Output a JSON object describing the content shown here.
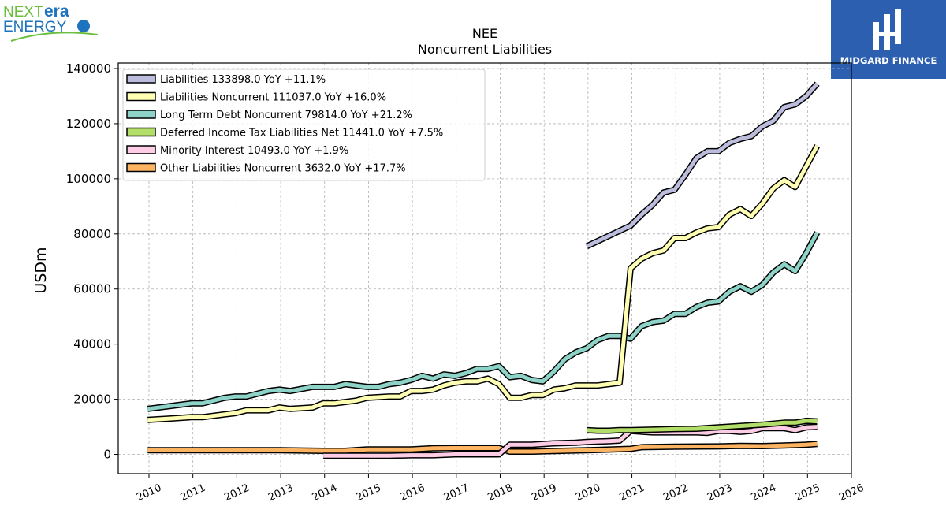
{
  "brand_left": {
    "line1_a": "NEXT",
    "line1_b": "era",
    "line2": "ENERGY"
  },
  "brand_right": {
    "name": "MIDGARD FINANCE"
  },
  "chart_data": {
    "type": "line",
    "title": "NEE",
    "subtitle": "Noncurrent  Liabilities",
    "ylabel": "USDm",
    "xlabel": "",
    "xlim": [
      2009.3,
      2026.0
    ],
    "ylim": [
      -7000,
      142000
    ],
    "x_ticks": [
      "2010",
      "2011",
      "2012",
      "2013",
      "2014",
      "2015",
      "2016",
      "2017",
      "2018",
      "2019",
      "2020",
      "2021",
      "2022",
      "2023",
      "2024",
      "2025",
      "2026"
    ],
    "y_ticks": [
      "0",
      "20000",
      "40000",
      "60000",
      "80000",
      "100000",
      "120000",
      "140000"
    ],
    "grid": true,
    "legend_position": "top-left",
    "series": [
      {
        "name": "Liabilities",
        "legend": "Liabilities  133898.0 YoY +11.1%",
        "color": "#bcbddc",
        "points": [
          [
            2019.97,
            75500
          ],
          [
            2020.97,
            83000
          ],
          [
            2021.22,
            87000
          ],
          [
            2021.47,
            90500
          ],
          [
            2021.72,
            95000
          ],
          [
            2021.97,
            96000
          ],
          [
            2022.22,
            101500
          ],
          [
            2022.47,
            107500
          ],
          [
            2022.72,
            110000
          ],
          [
            2022.97,
            110000
          ],
          [
            2023.22,
            113000
          ],
          [
            2023.47,
            114500
          ],
          [
            2023.72,
            115500
          ],
          [
            2023.97,
            119000
          ],
          [
            2024.22,
            121000
          ],
          [
            2024.47,
            126000
          ],
          [
            2024.72,
            127000
          ],
          [
            2024.97,
            130000
          ],
          [
            2025.22,
            134500
          ]
        ]
      },
      {
        "name": "Liabilities Noncurrent",
        "legend": "Liabilities Noncurrent  111037.0 YoY +16.0%",
        "color": "#ffffb3",
        "points": [
          [
            2009.97,
            12500
          ],
          [
            2010.47,
            13000
          ],
          [
            2010.97,
            13500
          ],
          [
            2011.22,
            13500
          ],
          [
            2011.72,
            14500
          ],
          [
            2011.97,
            15000
          ],
          [
            2012.22,
            16000
          ],
          [
            2012.72,
            16000
          ],
          [
            2012.97,
            17000
          ],
          [
            2013.22,
            16500
          ],
          [
            2013.72,
            17000
          ],
          [
            2013.97,
            18500
          ],
          [
            2014.22,
            18500
          ],
          [
            2014.72,
            19500
          ],
          [
            2014.97,
            20500
          ],
          [
            2015.47,
            21000
          ],
          [
            2015.72,
            21000
          ],
          [
            2015.97,
            23000
          ],
          [
            2016.22,
            23000
          ],
          [
            2016.47,
            23500
          ],
          [
            2016.72,
            25000
          ],
          [
            2016.97,
            26000
          ],
          [
            2017.22,
            26500
          ],
          [
            2017.47,
            26500
          ],
          [
            2017.72,
            27500
          ],
          [
            2017.97,
            25500
          ],
          [
            2018.22,
            20500
          ],
          [
            2018.47,
            20500
          ],
          [
            2018.72,
            21500
          ],
          [
            2018.97,
            21500
          ],
          [
            2019.22,
            23500
          ],
          [
            2019.47,
            24000
          ],
          [
            2019.72,
            25000
          ],
          [
            2019.97,
            25000
          ],
          [
            2020.22,
            25000
          ],
          [
            2020.47,
            25500
          ],
          [
            2020.72,
            26000
          ],
          [
            2020.97,
            67500
          ],
          [
            2021.22,
            71000
          ],
          [
            2021.47,
            73000
          ],
          [
            2021.72,
            74000
          ],
          [
            2021.97,
            78500
          ],
          [
            2022.22,
            78500
          ],
          [
            2022.47,
            80500
          ],
          [
            2022.72,
            82000
          ],
          [
            2022.97,
            82500
          ],
          [
            2023.22,
            87000
          ],
          [
            2023.47,
            89000
          ],
          [
            2023.72,
            86500
          ],
          [
            2023.97,
            91000
          ],
          [
            2024.22,
            96500
          ],
          [
            2024.47,
            99500
          ],
          [
            2024.72,
            97000
          ],
          [
            2024.97,
            104500
          ],
          [
            2025.22,
            112000
          ]
        ]
      },
      {
        "name": "Long Term Debt Noncurrent",
        "legend": "Long Term Debt Noncurrent  79814.0 YoY +21.2%",
        "color": "#8dd3c7",
        "points": [
          [
            2009.97,
            16500
          ],
          [
            2010.47,
            17500
          ],
          [
            2010.97,
            18500
          ],
          [
            2011.22,
            18500
          ],
          [
            2011.72,
            20500
          ],
          [
            2011.97,
            21000
          ],
          [
            2012.22,
            21000
          ],
          [
            2012.72,
            23000
          ],
          [
            2012.97,
            23500
          ],
          [
            2013.22,
            23000
          ],
          [
            2013.72,
            24500
          ],
          [
            2013.97,
            24500
          ],
          [
            2014.22,
            24500
          ],
          [
            2014.47,
            25500
          ],
          [
            2014.72,
            25000
          ],
          [
            2014.97,
            24500
          ],
          [
            2015.22,
            24500
          ],
          [
            2015.47,
            25500
          ],
          [
            2015.72,
            26000
          ],
          [
            2015.97,
            27000
          ],
          [
            2016.22,
            28500
          ],
          [
            2016.47,
            27500
          ],
          [
            2016.72,
            29000
          ],
          [
            2016.97,
            28500
          ],
          [
            2017.22,
            29500
          ],
          [
            2017.47,
            31000
          ],
          [
            2017.72,
            31000
          ],
          [
            2017.97,
            32000
          ],
          [
            2018.22,
            28000
          ],
          [
            2018.47,
            28500
          ],
          [
            2018.72,
            27000
          ],
          [
            2018.97,
            26500
          ],
          [
            2019.22,
            30000
          ],
          [
            2019.47,
            34500
          ],
          [
            2019.72,
            37000
          ],
          [
            2019.97,
            38500
          ],
          [
            2020.22,
            41500
          ],
          [
            2020.47,
            43000
          ],
          [
            2020.72,
            43000
          ],
          [
            2020.97,
            42000
          ],
          [
            2021.22,
            46500
          ],
          [
            2021.47,
            48000
          ],
          [
            2021.72,
            48500
          ],
          [
            2021.97,
            51000
          ],
          [
            2022.22,
            51000
          ],
          [
            2022.47,
            53500
          ],
          [
            2022.72,
            55000
          ],
          [
            2022.97,
            55500
          ],
          [
            2023.22,
            59000
          ],
          [
            2023.47,
            61000
          ],
          [
            2023.72,
            59000
          ],
          [
            2023.97,
            61500
          ],
          [
            2024.22,
            66000
          ],
          [
            2024.47,
            69000
          ],
          [
            2024.72,
            66500
          ],
          [
            2024.97,
            73000
          ],
          [
            2025.22,
            80500
          ]
        ]
      },
      {
        "name": "Deferred Income Tax Liabilities Net",
        "legend": "Deferred Income Tax Liabilities Net  11441.0 YoY +7.5%",
        "color": "#b3de69",
        "points": [
          [
            2019.97,
            8800
          ],
          [
            2020.22,
            8600
          ],
          [
            2020.47,
            8600
          ],
          [
            2020.72,
            8800
          ],
          [
            2020.97,
            8800
          ],
          [
            2021.47,
            9000
          ],
          [
            2021.97,
            9200
          ],
          [
            2022.47,
            9300
          ],
          [
            2022.97,
            9800
          ],
          [
            2023.47,
            10300
          ],
          [
            2023.97,
            10800
          ],
          [
            2024.47,
            11500
          ],
          [
            2024.72,
            11500
          ],
          [
            2024.97,
            12200
          ],
          [
            2025.22,
            12000
          ]
        ]
      },
      {
        "name": "Minority Interest",
        "legend": "Minority Interest  10493.0 YoY +1.9%",
        "color": "#fccde5",
        "points": [
          [
            2013.97,
            -500
          ],
          [
            2014.47,
            -500
          ],
          [
            2014.97,
            -500
          ],
          [
            2015.47,
            -500
          ],
          [
            2015.97,
            -300
          ],
          [
            2016.47,
            -300
          ],
          [
            2016.97,
            0
          ],
          [
            2017.47,
            0
          ],
          [
            2017.97,
            0
          ],
          [
            2018.22,
            3500
          ],
          [
            2018.72,
            3500
          ],
          [
            2019.22,
            4000
          ],
          [
            2019.72,
            4200
          ],
          [
            2019.97,
            4500
          ],
          [
            2020.47,
            4800
          ],
          [
            2020.72,
            5000
          ],
          [
            2020.97,
            8500
          ],
          [
            2021.47,
            8000
          ],
          [
            2021.97,
            8000
          ],
          [
            2022.47,
            8000
          ],
          [
            2022.72,
            7800
          ],
          [
            2022.97,
            8500
          ],
          [
            2023.22,
            8500
          ],
          [
            2023.47,
            8200
          ],
          [
            2023.72,
            8500
          ],
          [
            2023.97,
            9500
          ],
          [
            2024.47,
            9500
          ],
          [
            2024.72,
            8800
          ],
          [
            2024.97,
            9800
          ],
          [
            2025.22,
            10000
          ]
        ]
      },
      {
        "name": "Other Liabilities Noncurrent",
        "legend": "Other Liabilities Noncurrent  3632.0 YoY +17.7%",
        "color": "#fdb462",
        "points": [
          [
            2009.97,
            1500
          ],
          [
            2011.47,
            1500
          ],
          [
            2012.97,
            1500
          ],
          [
            2013.97,
            1300
          ],
          [
            2014.47,
            1300
          ],
          [
            2014.97,
            1800
          ],
          [
            2015.97,
            1800
          ],
          [
            2016.47,
            2200
          ],
          [
            2016.97,
            2300
          ],
          [
            2017.97,
            2300
          ],
          [
            2018.22,
            1000
          ],
          [
            2018.72,
            1000
          ],
          [
            2019.22,
            1200
          ],
          [
            2019.97,
            1500
          ],
          [
            2020.97,
            2000
          ],
          [
            2021.22,
            2600
          ],
          [
            2021.97,
            2800
          ],
          [
            2022.97,
            2900
          ],
          [
            2023.47,
            3100
          ],
          [
            2023.97,
            3000
          ],
          [
            2024.47,
            3200
          ],
          [
            2024.97,
            3500
          ],
          [
            2025.22,
            3800
          ]
        ]
      }
    ]
  }
}
